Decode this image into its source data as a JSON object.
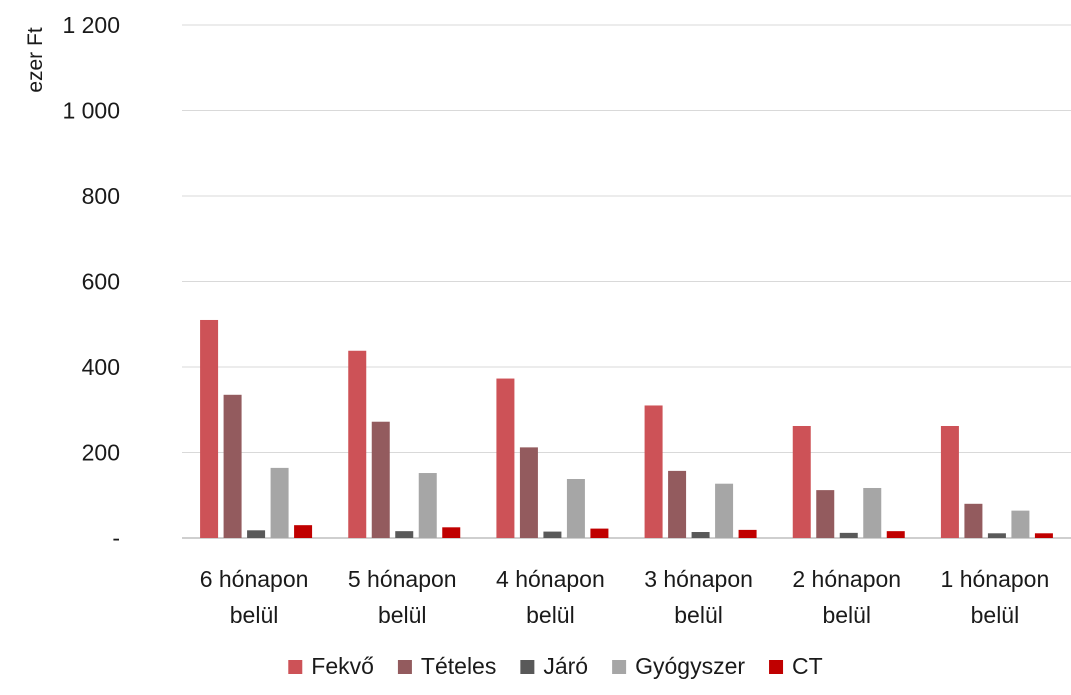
{
  "chart_data": {
    "type": "bar",
    "title": "",
    "xlabel": "",
    "ylabel": "ezer Ft",
    "ylim": [
      0,
      1200
    ],
    "yticks": [
      0,
      200,
      400,
      600,
      800,
      1000,
      1200
    ],
    "ytick_labels": [
      "-",
      "200",
      "400",
      "600",
      "800",
      "1 000",
      "1 200"
    ],
    "grid": true,
    "legend_position": "bottom",
    "categories": [
      [
        "6 hónapon",
        "belül"
      ],
      [
        "5 hónapon",
        "belül"
      ],
      [
        "4 hónapon",
        "belül"
      ],
      [
        "3 hónapon",
        "belül"
      ],
      [
        "2 hónapon",
        "belül"
      ],
      [
        "1 hónapon",
        "belül"
      ]
    ],
    "series": [
      {
        "name": "Fekvő",
        "color": "#cd5257",
        "values": [
          510,
          438,
          373,
          310,
          262,
          262
        ]
      },
      {
        "name": "Tételes",
        "color": "#935b5e",
        "values": [
          335,
          272,
          212,
          157,
          112,
          80
        ]
      },
      {
        "name": "Járó",
        "color": "#595959",
        "values": [
          18,
          16,
          15,
          14,
          12,
          11
        ]
      },
      {
        "name": "Gyógyszer",
        "color": "#a6a6a6",
        "values": [
          164,
          152,
          138,
          127,
          117,
          64
        ]
      },
      {
        "name": "CT",
        "color": "#c00000",
        "values": [
          30,
          25,
          22,
          19,
          16,
          11
        ]
      }
    ]
  }
}
